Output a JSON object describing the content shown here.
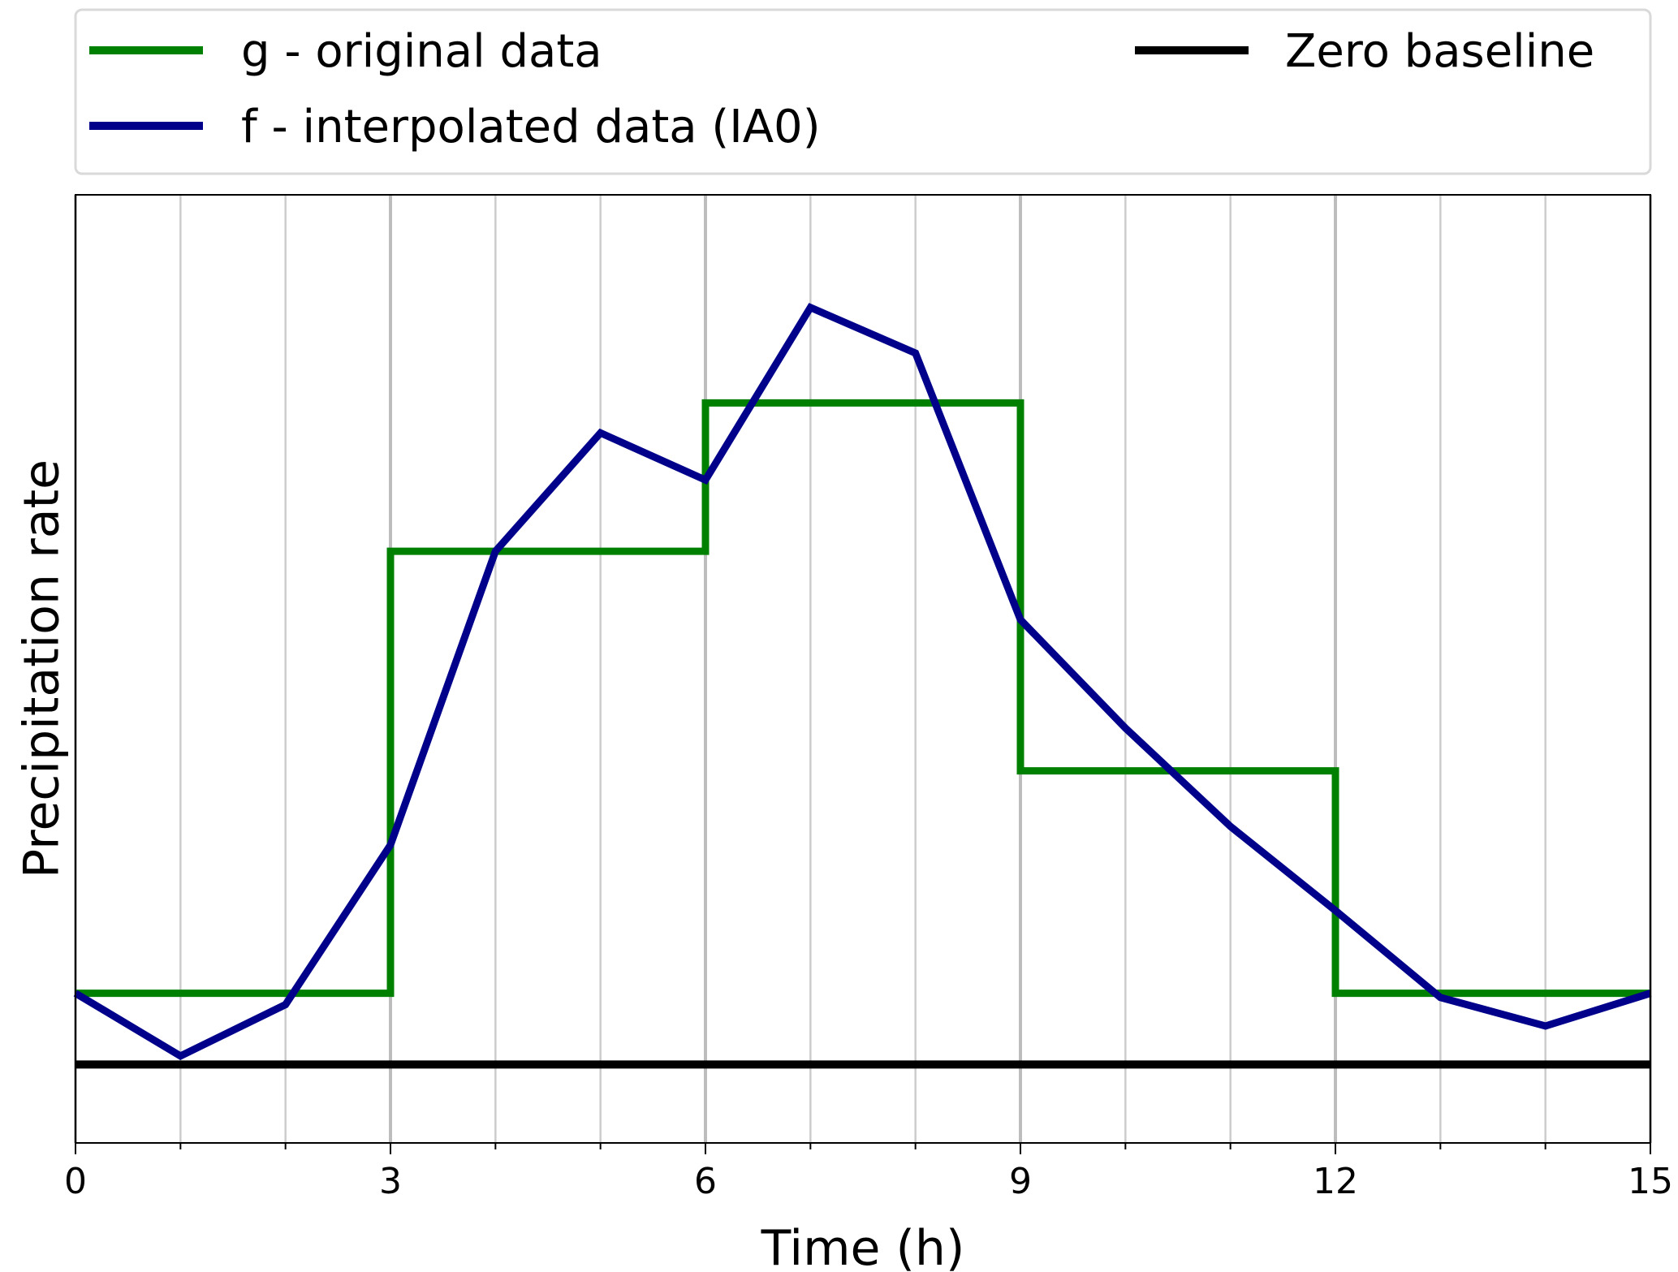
{
  "chart_data": {
    "type": "line",
    "title": "",
    "xlabel": "Time (h)",
    "ylabel": "Precipitation rate",
    "xlim": [
      0,
      15
    ],
    "ylim": [
      -0.55,
      6.1
    ],
    "x_ticks": [
      0,
      3,
      6,
      9,
      12,
      15
    ],
    "x_tick_labels": [
      "0",
      "3",
      "6",
      "9",
      "12",
      "15"
    ],
    "x_minor_ticks": [
      1,
      2,
      4,
      5,
      7,
      8,
      10,
      11,
      13,
      14
    ],
    "y_ticks_shown": false,
    "grid": "vertical",
    "legend": {
      "placement": "top-outside",
      "columns": 2
    },
    "series": [
      {
        "name": "g - original data",
        "color": "#008000",
        "drawstyle": "step",
        "x": [
          0,
          3,
          3,
          6,
          6,
          9,
          9,
          12,
          12,
          15
        ],
        "y": [
          0.5,
          0.5,
          3.6,
          3.6,
          4.64,
          4.64,
          2.06,
          2.06,
          0.5,
          0.5
        ]
      },
      {
        "name": "f - interpolated data (IA0)",
        "color": "#00008B",
        "drawstyle": "line",
        "x": [
          0,
          1,
          2,
          3,
          4,
          5,
          6,
          7,
          8,
          9,
          10,
          11,
          12,
          13,
          14,
          15
        ],
        "y": [
          0.5,
          0.06,
          0.42,
          1.54,
          3.6,
          4.43,
          4.1,
          5.31,
          4.99,
          3.12,
          2.36,
          1.67,
          1.08,
          0.47,
          0.27,
          0.5
        ]
      },
      {
        "name": "Zero baseline",
        "color": "#000000",
        "drawstyle": "line",
        "x": [
          0,
          15
        ],
        "y": [
          0,
          0
        ]
      }
    ]
  }
}
